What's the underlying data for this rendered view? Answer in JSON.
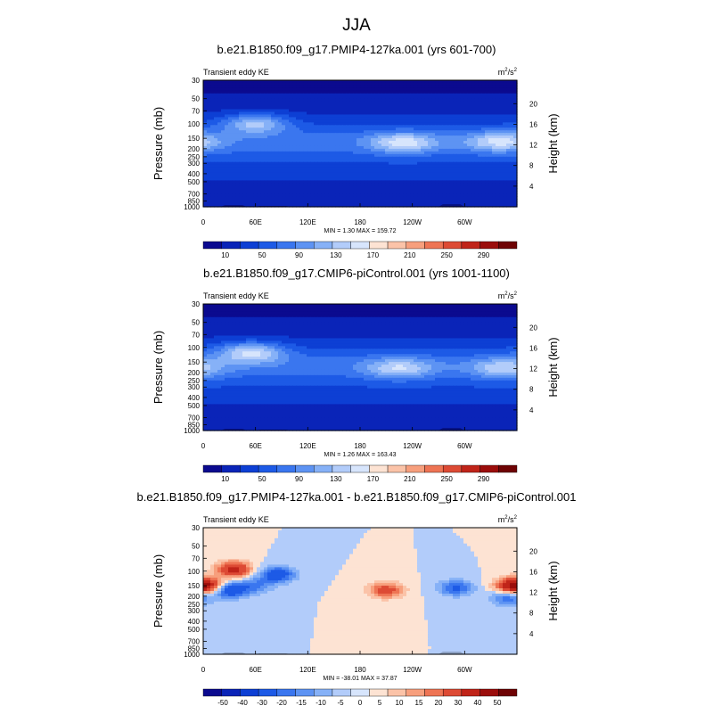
{
  "figure": {
    "title": "JJA"
  },
  "colors": {
    "abs_scale": [
      "#0b0a8f",
      "#0a24b8",
      "#0d3fd4",
      "#1d5ae6",
      "#3a76ef",
      "#5d93f3",
      "#86b1f7",
      "#b2ccfa",
      "#d7e5fc",
      "#fde3d3",
      "#fbc3a8",
      "#f79f7d",
      "#ee7454",
      "#dd4a34",
      "#c02419",
      "#9b0d0b",
      "#6e0304"
    ],
    "diff_scale": [
      "#0b0a8f",
      "#0a24b8",
      "#0d3fd4",
      "#1d5ae6",
      "#3a76ef",
      "#5d93f3",
      "#86b1f7",
      "#b2ccfa",
      "#d7e5fc",
      "#fde3d3",
      "#fbc3a8",
      "#f79f7d",
      "#ee7454",
      "#dd4a34",
      "#c02419",
      "#9b0d0b",
      "#6e0304"
    ],
    "terrain": "#000000"
  },
  "chart_data": [
    {
      "type": "heatmap",
      "title": "b.e21.B1850.f09_g17.PMIP4-127ka.001 (yrs 601-700)",
      "left_label": "Transient eddy KE",
      "units_base": "m",
      "units_sup1": "2",
      "units_mid": "/s",
      "units_sup2": "2",
      "ylabel": "Pressure (mb)",
      "y2label": "Height (km)",
      "x_ticks": [
        "0",
        "60E",
        "120E",
        "180",
        "120W",
        "60W"
      ],
      "y_ticks": [
        "30",
        "50",
        "70",
        "100",
        "150",
        "200",
        "250",
        "300",
        "400",
        "500",
        "700",
        "850",
        "1000"
      ],
      "y2_ticks": [
        "20",
        "16",
        "12",
        "8",
        "4"
      ],
      "min_max_text": "MIN =   1.30  MAX = 159.72",
      "min": 1.3,
      "max": 159.72,
      "colorbar_labels": [
        "10",
        "50",
        "90",
        "130",
        "170",
        "210",
        "250",
        "290"
      ],
      "features": [
        {
          "lon": 60,
          "p": 100,
          "peak": 150
        },
        {
          "lon": 230,
          "p": 170,
          "peak": 145
        },
        {
          "lon": 340,
          "p": 165,
          "peak": 140
        }
      ]
    },
    {
      "type": "heatmap",
      "title": "b.e21.B1850.f09_g17.CMIP6-piControl.001 (yrs 1001-1100)",
      "left_label": "Transient eddy KE",
      "units_base": "m",
      "units_sup1": "2",
      "units_mid": "/s",
      "units_sup2": "2",
      "ylabel": "Pressure (mb)",
      "y2label": "Height (km)",
      "x_ticks": [
        "0",
        "60E",
        "120E",
        "180",
        "120W",
        "60W"
      ],
      "y_ticks": [
        "30",
        "50",
        "70",
        "100",
        "150",
        "200",
        "250",
        "300",
        "400",
        "500",
        "700",
        "850",
        "1000"
      ],
      "y2_ticks": [
        "20",
        "16",
        "12",
        "8",
        "4"
      ],
      "min_max_text": "MIN =   1.26  MAX = 163.43",
      "min": 1.26,
      "max": 163.43,
      "colorbar_labels": [
        "10",
        "50",
        "90",
        "130",
        "170",
        "210",
        "250",
        "290"
      ],
      "features": [
        {
          "lon": 55,
          "p": 115,
          "peak": 160
        },
        {
          "lon": 225,
          "p": 180,
          "peak": 135
        },
        {
          "lon": 345,
          "p": 180,
          "peak": 130
        }
      ]
    },
    {
      "type": "heatmap",
      "title": "b.e21.B1850.f09_g17.PMIP4-127ka.001 - b.e21.B1850.f09_g17.CMIP6-piControl.001",
      "left_label": "Transient eddy KE",
      "units_base": "m",
      "units_sup1": "2",
      "units_mid": "/s",
      "units_sup2": "2",
      "ylabel": "Pressure (mb)",
      "y2label": "Height (km)",
      "x_ticks": [
        "0",
        "60E",
        "120E",
        "180",
        "120W",
        "60W"
      ],
      "y_ticks": [
        "30",
        "50",
        "70",
        "100",
        "150",
        "200",
        "250",
        "300",
        "400",
        "500",
        "700",
        "850",
        "1000"
      ],
      "y2_ticks": [
        "20",
        "16",
        "12",
        "8",
        "4"
      ],
      "min_max_text": "MIN = -38.01  MAX =  37.87",
      "min": -38.01,
      "max": 37.87,
      "colorbar_labels": [
        "-50",
        "-40",
        "-30",
        "-20",
        "-15",
        "-10",
        "-5",
        "0",
        "5",
        "10",
        "15",
        "20",
        "30",
        "40",
        "50"
      ],
      "features": [
        {
          "lon": 35,
          "p": 95,
          "peak": 35
        },
        {
          "lon": 5,
          "p": 150,
          "peak": 25
        },
        {
          "lon": 30,
          "p": 170,
          "peak": -30
        },
        {
          "lon": 85,
          "p": 110,
          "peak": -28
        },
        {
          "lon": 60,
          "p": 150,
          "peak": -15
        },
        {
          "lon": 210,
          "p": 170,
          "peak": 25
        },
        {
          "lon": 290,
          "p": 160,
          "peak": -22
        },
        {
          "lon": 355,
          "p": 150,
          "peak": 30
        },
        {
          "lon": 350,
          "p": 210,
          "peak": -20
        }
      ]
    }
  ]
}
